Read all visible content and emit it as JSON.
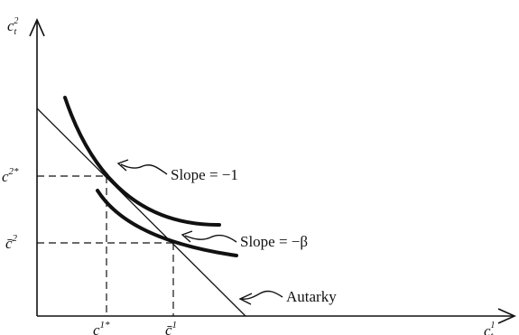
{
  "axes": {
    "y_label": "c",
    "y_sub": "t",
    "y_sup": "2",
    "x_label": "c",
    "x_sub": "t",
    "x_sup": "1"
  },
  "points": {
    "c2_star": {
      "base": "c",
      "sup": "2*"
    },
    "c2_bar": {
      "base": "c̄",
      "sup": "2"
    },
    "c1_star": {
      "base": "c",
      "sup": "1*"
    },
    "c1_bar": {
      "base": "c̄",
      "sup": "1"
    }
  },
  "annotations": {
    "slope_1": "Slope = −1",
    "slope_beta": "Slope = −β",
    "autarky": "Autarky"
  }
}
